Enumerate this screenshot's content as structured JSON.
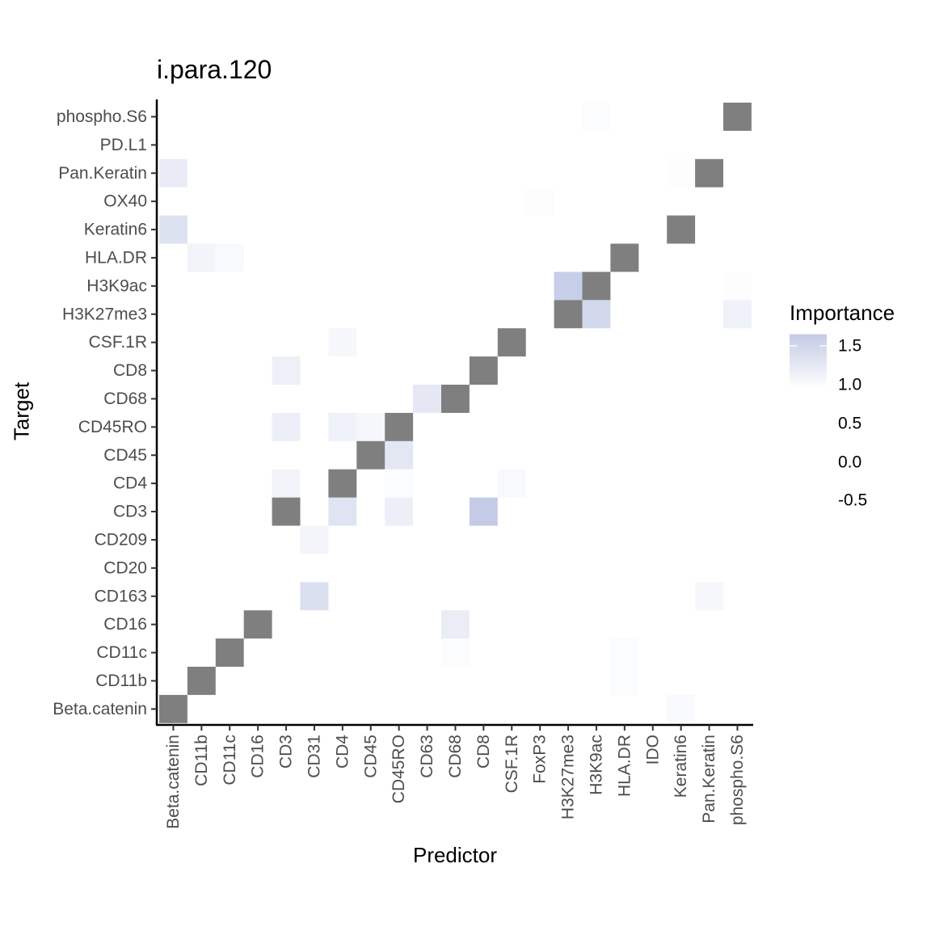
{
  "chart_data": {
    "type": "heatmap",
    "title": "i.para.120",
    "xlabel": "Predictor",
    "ylabel": "Target",
    "x_categories": [
      "Beta.catenin",
      "CD11b",
      "CD11c",
      "CD16",
      "CD3",
      "CD31",
      "CD4",
      "CD45",
      "CD45RO",
      "CD63",
      "CD68",
      "CD8",
      "CSF.1R",
      "FoxP3",
      "H3K27me3",
      "H3K9ac",
      "HLA.DR",
      "IDO",
      "Keratin6",
      "Pan.Keratin",
      "phospho.S6"
    ],
    "y_categories": [
      "Beta.catenin",
      "CD11b",
      "CD11c",
      "CD16",
      "CD163",
      "CD20",
      "CD209",
      "CD3",
      "CD4",
      "CD45",
      "CD45RO",
      "CD68",
      "CD8",
      "CSF.1R",
      "H3K27me3",
      "H3K9ac",
      "HLA.DR",
      "Keratin6",
      "OX40",
      "Pan.Keratin",
      "PD.L1",
      "phospho.S6"
    ],
    "na_color": "#7f7f7f",
    "low_color": "#ffffff",
    "high_color": "#c3cbe6",
    "cells": [
      {
        "target": "phospho.S6",
        "predictor": "H3K9ac",
        "value": 0.1
      },
      {
        "target": "Pan.Keratin",
        "predictor": "Beta.catenin",
        "value": 0.6
      },
      {
        "target": "Pan.Keratin",
        "predictor": "Keratin6",
        "value": 0.05
      },
      {
        "target": "OX40",
        "predictor": "FoxP3",
        "value": 0.05
      },
      {
        "target": "Keratin6",
        "predictor": "Beta.catenin",
        "value": 0.9
      },
      {
        "target": "HLA.DR",
        "predictor": "CD11b",
        "value": 0.35
      },
      {
        "target": "HLA.DR",
        "predictor": "CD11c",
        "value": 0.2
      },
      {
        "target": "H3K9ac",
        "predictor": "H3K27me3",
        "value": 1.5
      },
      {
        "target": "H3K9ac",
        "predictor": "phospho.S6",
        "value": 0.05
      },
      {
        "target": "H3K27me3",
        "predictor": "H3K9ac",
        "value": 1.2
      },
      {
        "target": "H3K27me3",
        "predictor": "phospho.S6",
        "value": 0.4
      },
      {
        "target": "CSF.1R",
        "predictor": "CD4",
        "value": 0.25
      },
      {
        "target": "CD8",
        "predictor": "CD3",
        "value": 0.45
      },
      {
        "target": "CD68",
        "predictor": "CD63",
        "value": 0.7
      },
      {
        "target": "CD45RO",
        "predictor": "CD3",
        "value": 0.5
      },
      {
        "target": "CD45RO",
        "predictor": "CD4",
        "value": 0.4
      },
      {
        "target": "CD45RO",
        "predictor": "CD45",
        "value": 0.25
      },
      {
        "target": "CD45",
        "predictor": "CD45RO",
        "value": 0.75
      },
      {
        "target": "CD4",
        "predictor": "CD3",
        "value": 0.35
      },
      {
        "target": "CD4",
        "predictor": "CD45RO",
        "value": 0.1
      },
      {
        "target": "CD4",
        "predictor": "CSF.1R",
        "value": 0.2
      },
      {
        "target": "CD3",
        "predictor": "CD4",
        "value": 0.85
      },
      {
        "target": "CD3",
        "predictor": "CD45RO",
        "value": 0.5
      },
      {
        "target": "CD3",
        "predictor": "CD8",
        "value": 1.6
      },
      {
        "target": "CD209",
        "predictor": "CD31",
        "value": 0.3
      },
      {
        "target": "CD163",
        "predictor": "CD31",
        "value": 0.95
      },
      {
        "target": "CD163",
        "predictor": "Pan.Keratin",
        "value": 0.25
      },
      {
        "target": "CD16",
        "predictor": "CD68",
        "value": 0.55
      },
      {
        "target": "CD11c",
        "predictor": "CD68",
        "value": 0.1
      },
      {
        "target": "CD11c",
        "predictor": "HLA.DR",
        "value": 0.1
      },
      {
        "target": "CD11b",
        "predictor": "HLA.DR",
        "value": 0.1
      },
      {
        "target": "Beta.catenin",
        "predictor": "Keratin6",
        "value": 0.15
      }
    ],
    "na_cells": [
      {
        "target": "phospho.S6",
        "predictor": "phospho.S6"
      },
      {
        "target": "Pan.Keratin",
        "predictor": "Pan.Keratin"
      },
      {
        "target": "Keratin6",
        "predictor": "Keratin6"
      },
      {
        "target": "HLA.DR",
        "predictor": "HLA.DR"
      },
      {
        "target": "H3K9ac",
        "predictor": "H3K9ac"
      },
      {
        "target": "H3K27me3",
        "predictor": "H3K27me3"
      },
      {
        "target": "CSF.1R",
        "predictor": "CSF.1R"
      },
      {
        "target": "CD8",
        "predictor": "CD8"
      },
      {
        "target": "CD68",
        "predictor": "CD68"
      },
      {
        "target": "CD45RO",
        "predictor": "CD45RO"
      },
      {
        "target": "CD45",
        "predictor": "CD45"
      },
      {
        "target": "CD4",
        "predictor": "CD4"
      },
      {
        "target": "CD3",
        "predictor": "CD3"
      },
      {
        "target": "CD16",
        "predictor": "CD16"
      },
      {
        "target": "CD11c",
        "predictor": "CD11c"
      },
      {
        "target": "CD11b",
        "predictor": "CD11b"
      },
      {
        "target": "Beta.catenin",
        "predictor": "Beta.catenin"
      }
    ],
    "legend": {
      "title": "Importance",
      "ticks": [
        "1.5",
        "1.0",
        "0.5",
        "0.0",
        "-0.5"
      ],
      "range": [
        0.95,
        1.65
      ],
      "placement": "right"
    }
  }
}
